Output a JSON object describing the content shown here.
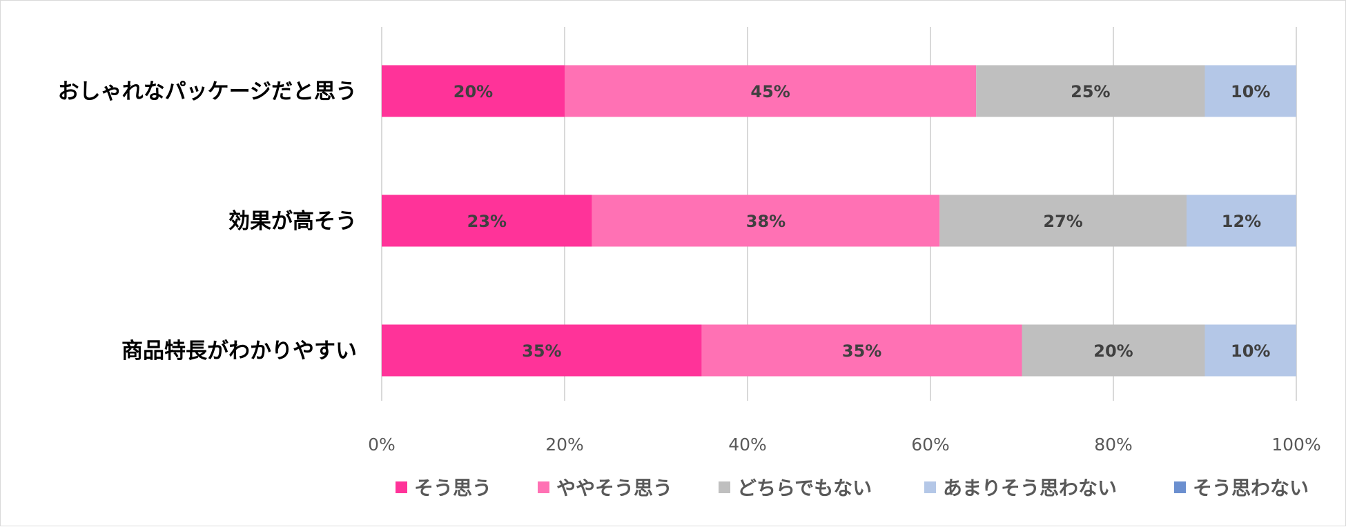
{
  "chart_data": {
    "type": "bar",
    "orientation": "horizontal",
    "stacked": "100%",
    "categories": [
      "おしゃれなパッケージだと思う",
      "効果が高そう",
      "商品特長がわかりやすい"
    ],
    "series": [
      {
        "name": "そう思う",
        "color": "#ff3399",
        "values": [
          20,
          23,
          35
        ],
        "labels": [
          "20%",
          "23%",
          "35%"
        ]
      },
      {
        "name": "ややそう思う",
        "color": "#ff71b4",
        "values": [
          45,
          38,
          35
        ],
        "labels": [
          "45%",
          "38%",
          "35%"
        ]
      },
      {
        "name": "どちらでもない",
        "color": "#bfbfbf",
        "values": [
          25,
          27,
          20
        ],
        "labels": [
          "25%",
          "27%",
          "20%"
        ]
      },
      {
        "name": "あまりそう思わない",
        "color": "#b4c7e7",
        "values": [
          10,
          12,
          10
        ],
        "labels": [
          "10%",
          "12%",
          "10%"
        ]
      },
      {
        "name": "そう思わない",
        "color": "#6b8fcf",
        "values": [
          0,
          0,
          0
        ],
        "labels": [
          "",
          "",
          ""
        ]
      }
    ],
    "x_ticks": [
      "0%",
      "20%",
      "40%",
      "60%",
      "80%",
      "100%"
    ],
    "xlim": [
      0,
      100
    ],
    "grid": true,
    "legend": "bottom",
    "title": "",
    "xlabel": "",
    "ylabel": ""
  }
}
